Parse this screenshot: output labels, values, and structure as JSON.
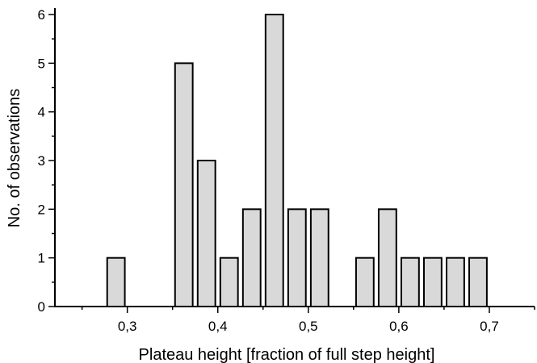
{
  "chart_data": {
    "type": "bar",
    "xlabel": "Plateau height [fraction of full step height]",
    "ylabel": "No. of observations",
    "xlim": [
      0.22,
      0.75
    ],
    "ylim": [
      0,
      6.1
    ],
    "bin_width": 0.025,
    "x": [
      0.2875,
      0.3625,
      0.3875,
      0.4125,
      0.4375,
      0.4625,
      0.4875,
      0.5125,
      0.5625,
      0.5875,
      0.6125,
      0.6375,
      0.6625,
      0.6875
    ],
    "values": [
      1,
      5,
      3,
      1,
      2,
      6,
      2,
      2,
      1,
      2,
      1,
      1,
      1,
      1
    ],
    "x_ticks": [
      0.3,
      0.4,
      0.5,
      0.6,
      0.7
    ],
    "x_tick_labels": [
      "0,3",
      "0,4",
      "0,5",
      "0,6",
      "0,7"
    ],
    "y_ticks": [
      0,
      1,
      2,
      3,
      4,
      5,
      6
    ],
    "y_tick_labels": [
      "0",
      "1",
      "2",
      "3",
      "4",
      "5",
      "6"
    ],
    "bar_color": "#d9d9d9",
    "grid": false
  }
}
